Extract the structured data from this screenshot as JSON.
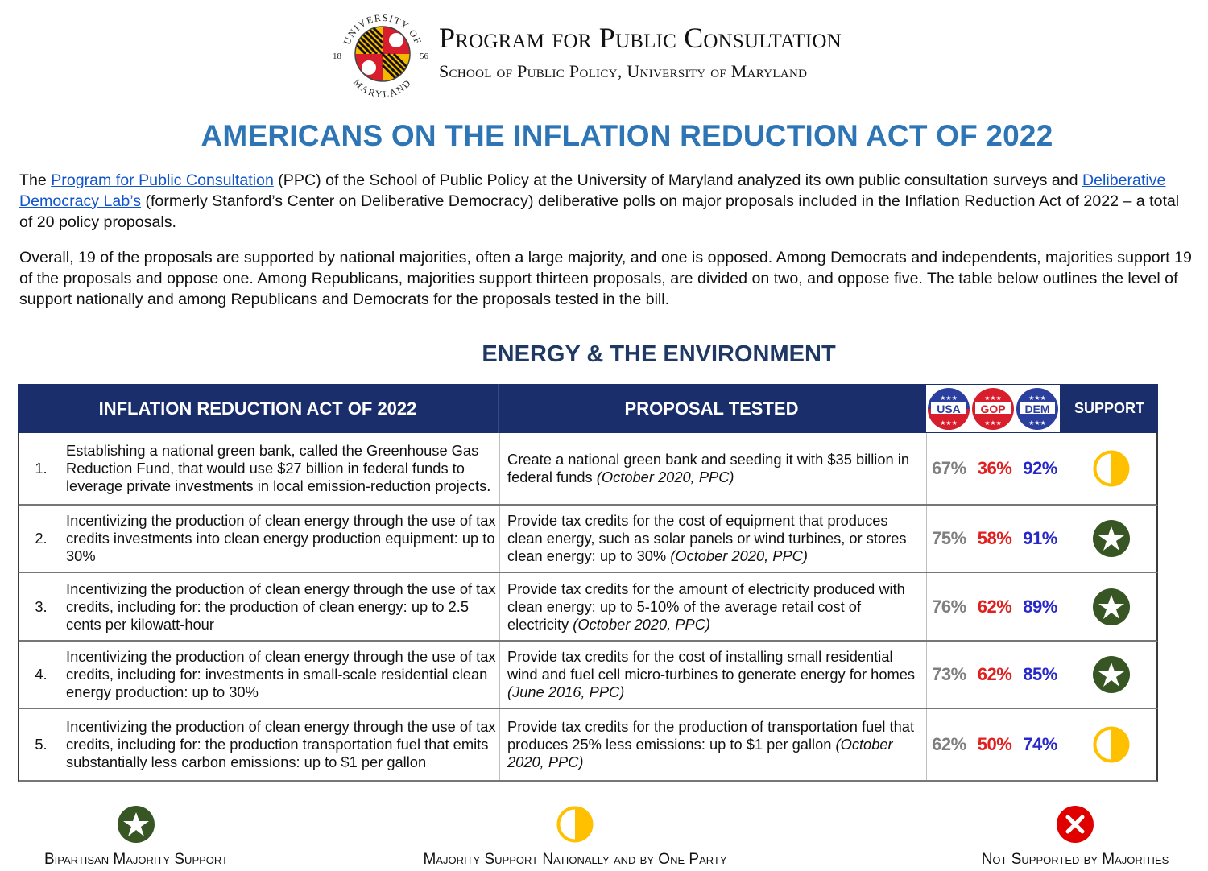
{
  "header": {
    "org_title": "Program for Public Consultation",
    "org_subtitle": "School of Public Policy, University of Maryland",
    "seal_text_top": "UNIVERSITY OF",
    "seal_text_bottom": "MARYLAND",
    "seal_year_left": "18",
    "seal_year_right": "56"
  },
  "title": "AMERICANS ON THE INFLATION REDUCTION ACT OF 2022",
  "intro": {
    "p1_prefix": "The ",
    "p1_link1": "Program for Public Consultation",
    "p1_mid": " (PPC) of the School of Public Policy at the University of Maryland analyzed its own public consultation surveys and ",
    "p1_link2": "Deliberative Democracy Lab’s",
    "p1_suffix": " (formerly Stanford’s Center on Deliberative Democracy) deliberative polls on major proposals included in the Inflation Reduction Act of 2022 – a total of 20 policy proposals.",
    "p2": "Overall, 19 of the proposals are supported by national majorities, often a large majority, and one is opposed. Among Democrats and independents, majorities support 19 of the proposals and oppose one. Among Republicans, majorities support thirteen proposals, are divided on two, and oppose five. The table below outlines the level of support nationally and among Republicans and Democrats for the proposals tested in the bill."
  },
  "section_title": "ENERGY & THE ENVIRONMENT",
  "table": {
    "col_act": "INFLATION REDUCTION ACT OF 2022",
    "col_proposal": "PROPOSAL TESTED",
    "col_support": "SUPPORT",
    "badges": [
      "USA",
      "GOP",
      "DEM"
    ],
    "rows": [
      {
        "num": "1.",
        "act": "Establishing a national green bank, called the Greenhouse Gas Reduction Fund, that would use $27 billion in federal funds to leverage private investments in local emission-reduction projects.",
        "proposal": "Create a national green bank and seeding it with $35 billion in federal funds",
        "source": "(October 2020, PPC)",
        "usa": "67%",
        "gop": "36%",
        "dem": "92%",
        "support": "half"
      },
      {
        "num": "2.",
        "act": "Incentivizing the production of clean energy through the use of tax credits investments into clean energy production equipment: up to 30%",
        "proposal": "Provide tax credits for the cost of equipment that produces clean energy, such as solar panels or wind turbines, or stores clean energy: up to 30%",
        "source": "(October 2020, PPC)",
        "usa": "75%",
        "gop": "58%",
        "dem": "91%",
        "support": "star"
      },
      {
        "num": "3.",
        "act": "Incentivizing the production of clean energy through the use of tax credits, including for: the production of clean energy: up to 2.5 cents per kilowatt-hour",
        "proposal": "Provide tax credits for the amount of electricity produced with clean energy: up to 5-10% of the average retail cost of electricity",
        "source": "(October 2020, PPC)",
        "usa": "76%",
        "gop": "62%",
        "dem": "89%",
        "support": "star"
      },
      {
        "num": "4.",
        "act": "Incentivizing the production of clean energy through the use of tax credits, including for: investments in small-scale residential clean energy production: up to 30%",
        "proposal": "Provide tax credits for the cost of installing small residential wind and fuel cell micro-turbines to generate energy for homes",
        "source": "(June 2016, PPC)",
        "usa": "73%",
        "gop": "62%",
        "dem": "85%",
        "support": "star"
      },
      {
        "num": "5.",
        "act": "Incentivizing the production of clean energy through the use of tax credits, including for: the production transportation fuel that emits substantially less carbon emissions: up to $1 per gallon",
        "proposal": "Provide tax credits for the production of transportation fuel that produces 25% less emissions: up to $1 per gallon",
        "source": "(October 2020, PPC)",
        "usa": "62%",
        "gop": "50%",
        "dem": "74%",
        "support": "half"
      }
    ]
  },
  "legend": {
    "bipartisan": "Bipartisan Majority Support",
    "one_party": "Majority Support Nationally and by One Party",
    "not_supported": "Not Supported by Majorities"
  },
  "colors": {
    "title_blue": "#2e75b6",
    "header_navy": "#1a2e6b",
    "star_green": "#375623",
    "half_yellow": "#ffc000",
    "x_red": "#e00000"
  }
}
